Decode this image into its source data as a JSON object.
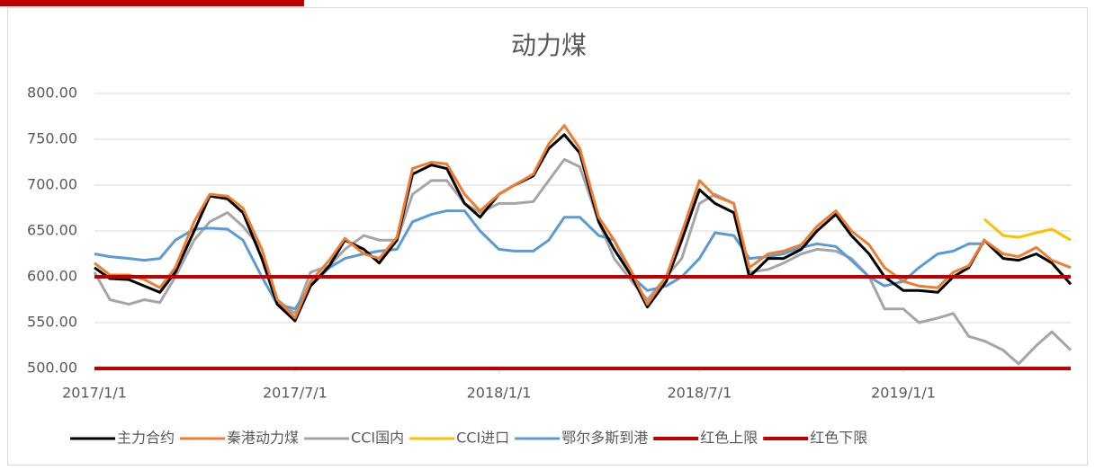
{
  "chart_data": {
    "type": "line",
    "title": "动力煤",
    "x": [
      "2017/1/1",
      "2017/1/15",
      "2017/2/1",
      "2017/2/15",
      "2017/3/1",
      "2017/3/15",
      "2017/4/1",
      "2017/4/15",
      "2017/5/1",
      "2017/5/15",
      "2017/6/1",
      "2017/6/15",
      "2017/7/1",
      "2017/7/15",
      "2017/8/1",
      "2017/8/15",
      "2017/9/1",
      "2017/9/15",
      "2017/10/1",
      "2017/10/15",
      "2017/11/1",
      "2017/11/15",
      "2017/12/1",
      "2017/12/15",
      "2018/1/1",
      "2018/1/15",
      "2018/2/1",
      "2018/2/15",
      "2018/3/1",
      "2018/3/15",
      "2018/4/1",
      "2018/4/15",
      "2018/5/1",
      "2018/5/15",
      "2018/6/1",
      "2018/6/15",
      "2018/7/1",
      "2018/7/15",
      "2018/8/1",
      "2018/8/15",
      "2018/9/1",
      "2018/9/15",
      "2018/10/1",
      "2018/10/15",
      "2018/11/1",
      "2018/11/15",
      "2018/12/1",
      "2018/12/15",
      "2019/1/1",
      "2019/1/15",
      "2019/2/1",
      "2019/2/15",
      "2019/3/1",
      "2019/3/15",
      "2019/4/1",
      "2019/4/15",
      "2019/5/1",
      "2019/5/15",
      "2019/6/1"
    ],
    "series": [
      {
        "name": "CCI国内",
        "color": "#a5a5a5",
        "values": [
          605,
          575,
          570,
          575,
          572,
          600,
          640,
          660,
          670,
          655,
          630,
          575,
          560,
          605,
          612,
          630,
          645,
          640,
          640,
          690,
          705,
          705,
          680,
          670,
          680,
          680,
          682,
          705,
          728,
          720,
          660,
          620,
          595,
          575,
          600,
          620,
          680,
          690,
          680,
          605,
          608,
          615,
          625,
          630,
          628,
          620,
          600,
          565,
          565,
          550,
          555,
          560,
          535,
          530,
          520,
          505,
          525,
          540,
          520
        ]
      },
      {
        "name": "鄂尔多斯到港",
        "color": "#5b9bd5",
        "values": [
          625,
          622,
          620,
          618,
          620,
          640,
          652,
          653,
          652,
          640,
          600,
          570,
          565,
          590,
          610,
          620,
          625,
          628,
          630,
          660,
          668,
          672,
          672,
          650,
          630,
          628,
          628,
          640,
          665,
          665,
          645,
          640,
          600,
          585,
          590,
          600,
          620,
          648,
          645,
          620,
          622,
          625,
          632,
          636,
          633,
          618,
          600,
          590,
          595,
          610,
          625,
          628,
          636,
          636,
          null,
          null,
          null,
          null,
          null
        ]
      },
      {
        "name": "CCI进口",
        "color": "#ffc000",
        "values": [
          null,
          null,
          null,
          null,
          null,
          null,
          null,
          null,
          null,
          null,
          null,
          null,
          null,
          null,
          null,
          null,
          null,
          null,
          null,
          null,
          null,
          null,
          null,
          null,
          null,
          null,
          null,
          null,
          null,
          null,
          null,
          null,
          null,
          null,
          null,
          null,
          null,
          null,
          null,
          null,
          null,
          null,
          null,
          null,
          null,
          null,
          null,
          null,
          null,
          null,
          null,
          null,
          null,
          663,
          645,
          643,
          648,
          652,
          640
        ]
      },
      {
        "name": "主力合约",
        "color": "#000000",
        "values": [
          610,
          598,
          597,
          590,
          583,
          605,
          650,
          688,
          685,
          670,
          620,
          570,
          552,
          590,
          612,
          640,
          630,
          615,
          640,
          712,
          722,
          718,
          680,
          665,
          690,
          700,
          710,
          740,
          755,
          735,
          660,
          630,
          600,
          567,
          595,
          640,
          695,
          680,
          670,
          600,
          620,
          620,
          630,
          650,
          668,
          645,
          625,
          600,
          585,
          585,
          583,
          600,
          610,
          640,
          620,
          618,
          625,
          615,
          592
        ]
      },
      {
        "name": "秦港动力煤",
        "color": "#ed7d31",
        "values": [
          615,
          602,
          602,
          597,
          588,
          610,
          660,
          690,
          688,
          675,
          630,
          575,
          555,
          595,
          618,
          642,
          625,
          620,
          643,
          718,
          725,
          723,
          690,
          672,
          690,
          700,
          712,
          745,
          765,
          740,
          665,
          640,
          605,
          570,
          600,
          648,
          705,
          688,
          680,
          610,
          625,
          628,
          635,
          655,
          672,
          650,
          635,
          610,
          595,
          590,
          588,
          605,
          612,
          640,
          625,
          622,
          632,
          618,
          610
        ]
      },
      {
        "name": "红色上限",
        "color": "#c00000",
        "values": [
          600,
          600,
          600,
          600,
          600,
          600,
          600,
          600,
          600,
          600,
          600,
          600,
          600,
          600,
          600,
          600,
          600,
          600,
          600,
          600,
          600,
          600,
          600,
          600,
          600,
          600,
          600,
          600,
          600,
          600,
          600,
          600,
          600,
          600,
          600,
          600,
          600,
          600,
          600,
          600,
          600,
          600,
          600,
          600,
          600,
          600,
          600,
          600,
          600,
          600,
          600,
          600,
          600,
          600,
          600,
          600,
          600,
          600,
          600
        ]
      },
      {
        "name": "红色下限",
        "color": "#c00000",
        "values": [
          500,
          500,
          500,
          500,
          500,
          500,
          500,
          500,
          500,
          500,
          500,
          500,
          500,
          500,
          500,
          500,
          500,
          500,
          500,
          500,
          500,
          500,
          500,
          500,
          500,
          500,
          500,
          500,
          500,
          500,
          500,
          500,
          500,
          500,
          500,
          500,
          500,
          500,
          500,
          500,
          500,
          500,
          500,
          500,
          500,
          500,
          500,
          500,
          500,
          500,
          500,
          500,
          500,
          500,
          500,
          500,
          500,
          500,
          500
        ]
      }
    ],
    "legend_order": [
      "主力合约",
      "秦港动力煤",
      "CCI国内",
      "CCI进口",
      "鄂尔多斯到港",
      "红色上限",
      "红色下限"
    ],
    "xlim": [
      "2017/1/1",
      "2019/6/1"
    ],
    "xticks": [
      "2017/1/1",
      "2017/7/1",
      "2018/1/1",
      "2018/7/1",
      "2019/1/1"
    ],
    "ylim": [
      500,
      800
    ],
    "yticks": [
      {
        "value": 500,
        "label": "500.00"
      },
      {
        "value": 550,
        "label": "550.00"
      },
      {
        "value": 600,
        "label": "600.00"
      },
      {
        "value": 650,
        "label": "650.00"
      },
      {
        "value": 700,
        "label": "700.00"
      },
      {
        "value": 750,
        "label": "750.00"
      },
      {
        "value": 800,
        "label": "800.00"
      }
    ],
    "grid": true,
    "legend": "bottom"
  }
}
